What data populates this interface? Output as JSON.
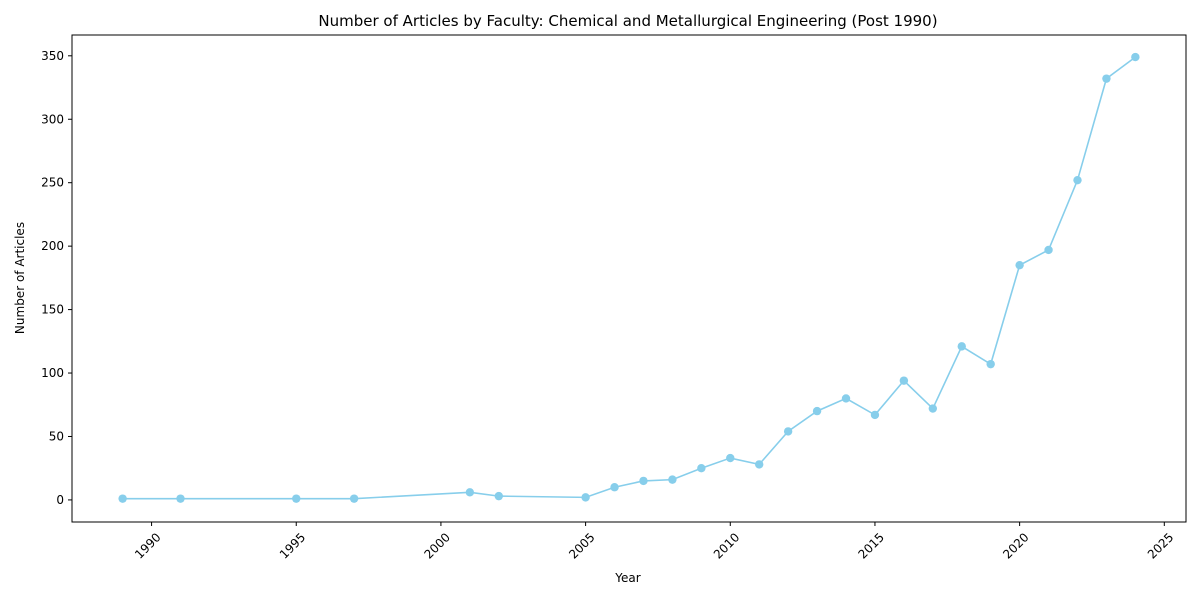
{
  "chart_data": {
    "type": "line",
    "title": "Number of Articles by Faculty: Chemical and Metallurgical Engineering (Post 1990)",
    "xlabel": "Year",
    "ylabel": "Number of Articles",
    "xlim": [
      1987.25,
      2025.75
    ],
    "ylim": [
      -17.4,
      366.4
    ],
    "xticks": [
      1990,
      1995,
      2000,
      2005,
      2010,
      2015,
      2020,
      2025
    ],
    "yticks": [
      0,
      50,
      100,
      150,
      200,
      250,
      300,
      350
    ],
    "grid": false,
    "series": [
      {
        "name": "Articles",
        "color": "#87ceeb",
        "marker": "circle",
        "x": [
          1989,
          1991,
          1995,
          1997,
          2001,
          2002,
          2005,
          2006,
          2007,
          2008,
          2009,
          2010,
          2011,
          2012,
          2013,
          2014,
          2015,
          2016,
          2017,
          2018,
          2019,
          2020,
          2021,
          2022,
          2023,
          2024
        ],
        "y": [
          1,
          1,
          1,
          1,
          6,
          3,
          2,
          10,
          15,
          16,
          25,
          33,
          28,
          54,
          70,
          80,
          67,
          94,
          72,
          121,
          107,
          185,
          197,
          252,
          332,
          349
        ]
      }
    ]
  }
}
